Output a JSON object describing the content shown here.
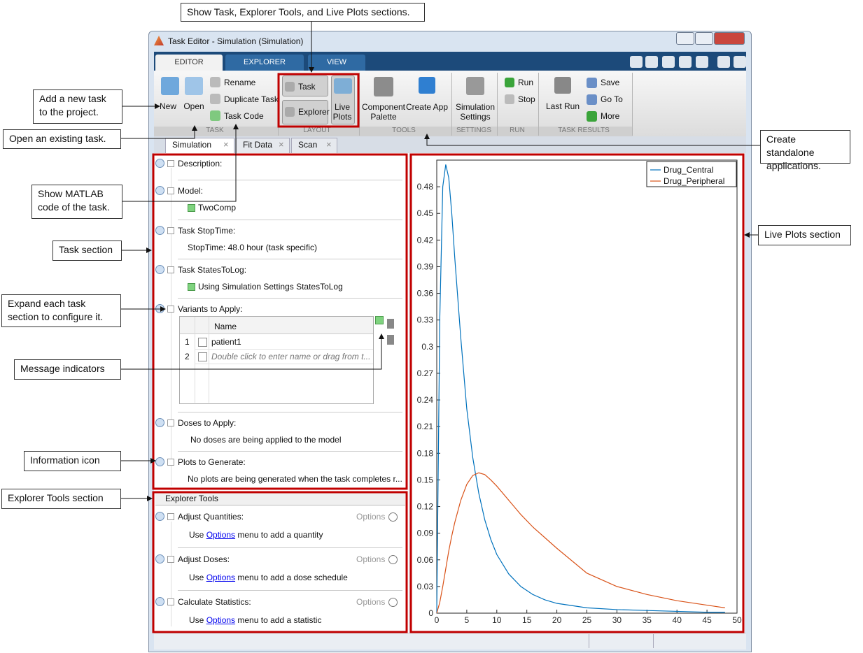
{
  "annotations": [
    "Show Task, Explorer Tools, and Live Plots sections.",
    "Add a new task to the project.",
    "Open an existing task.",
    "Show MATLAB code of the task.",
    "Task section",
    "Expand each task section to configure it.",
    "Message indicators",
    "Information  icon",
    "Explorer Tools  section",
    "Create standalone applications.",
    "Live Plots section"
  ],
  "window": {
    "title": "Task Editor - Simulation (Simulation)"
  },
  "ribbon": {
    "tabs": [
      "EDITOR",
      "EXPLORER",
      "VIEW"
    ],
    "buttons": [
      "New",
      "Open",
      "Rename",
      "Duplicate Task",
      "Task Code",
      "Task",
      "Explorer",
      "Live Plots",
      "Component Palette",
      "Create App",
      "Simulation Settings",
      "Run",
      "Stop",
      "Last Run",
      "Save",
      "Go To",
      "More"
    ],
    "groups": [
      "TASK",
      "LAYOUT",
      "TOOLS",
      "SETTINGS",
      "RUN",
      "TASK RESULTS"
    ]
  },
  "doc_tabs": [
    "Simulation",
    "Fit Data",
    "Scan"
  ],
  "task_sections": [
    {
      "title": "Description:"
    },
    {
      "title": "Model:",
      "content": "TwoComp"
    },
    {
      "title": "Task StopTime:",
      "content": "StopTime: 48.0 hour (task specific)"
    },
    {
      "title": "Task StatesToLog:",
      "content": "Using Simulation Settings StatesToLog"
    },
    {
      "title": "Variants to Apply:",
      "table": {
        "header": "Name",
        "rows": [
          [
            1,
            "patient1"
          ],
          [
            2,
            "Double click to enter name or drag from t..."
          ]
        ]
      }
    },
    {
      "title": "Doses to Apply:",
      "content": "No doses are being applied to the model"
    },
    {
      "title": "Plots to Generate:",
      "content": "No plots are being generated when the task completes r..."
    }
  ],
  "explorer_tools": {
    "title": "Explorer Tools",
    "items": [
      {
        "title": "Adjust Quantities:",
        "options": "Options",
        "text": [
          "Use",
          "Options",
          "menu to add a quantity"
        ]
      },
      {
        "title": "Adjust Doses:",
        "options": "Options",
        "text": [
          "Use",
          "Options",
          "menu to add a dose schedule"
        ]
      },
      {
        "title": "Calculate Statistics:",
        "options": "Options",
        "text": [
          "Use",
          "Options",
          "menu to add a statistic"
        ]
      }
    ]
  },
  "chart_data": {
    "type": "line",
    "x": [
      0,
      0.5,
      1,
      1.5,
      2,
      2.5,
      3,
      4,
      5,
      6,
      7,
      8,
      9,
      10,
      12,
      14,
      16,
      18,
      20,
      25,
      30,
      35,
      40,
      45,
      48
    ],
    "series": [
      {
        "name": "Drug_Central",
        "color": "#0072bd",
        "values": [
          0,
          0.33,
          0.48,
          0.505,
          0.49,
          0.45,
          0.4,
          0.31,
          0.23,
          0.175,
          0.135,
          0.105,
          0.083,
          0.066,
          0.044,
          0.03,
          0.021,
          0.015,
          0.011,
          0.006,
          0.004,
          0.003,
          0.002,
          0.001,
          0.001
        ]
      },
      {
        "name": "Drug_Peripheral",
        "color": "#d95319",
        "values": [
          0,
          0.012,
          0.03,
          0.05,
          0.07,
          0.087,
          0.102,
          0.127,
          0.145,
          0.155,
          0.158,
          0.156,
          0.15,
          0.143,
          0.127,
          0.111,
          0.097,
          0.085,
          0.073,
          0.045,
          0.03,
          0.021,
          0.014,
          0.009,
          0.006
        ]
      }
    ],
    "xlim": [
      0,
      50
    ],
    "ylim": [
      0,
      0.51
    ],
    "xticks": [
      0,
      5,
      10,
      15,
      20,
      25,
      30,
      35,
      40,
      45,
      50
    ],
    "yticks": [
      0,
      0.03,
      0.06,
      0.09,
      0.12,
      0.15,
      0.18,
      0.21,
      0.24,
      0.27,
      0.3,
      0.33,
      0.36,
      0.39,
      0.42,
      0.45,
      0.48
    ],
    "grid": false,
    "legend": "upper right"
  }
}
